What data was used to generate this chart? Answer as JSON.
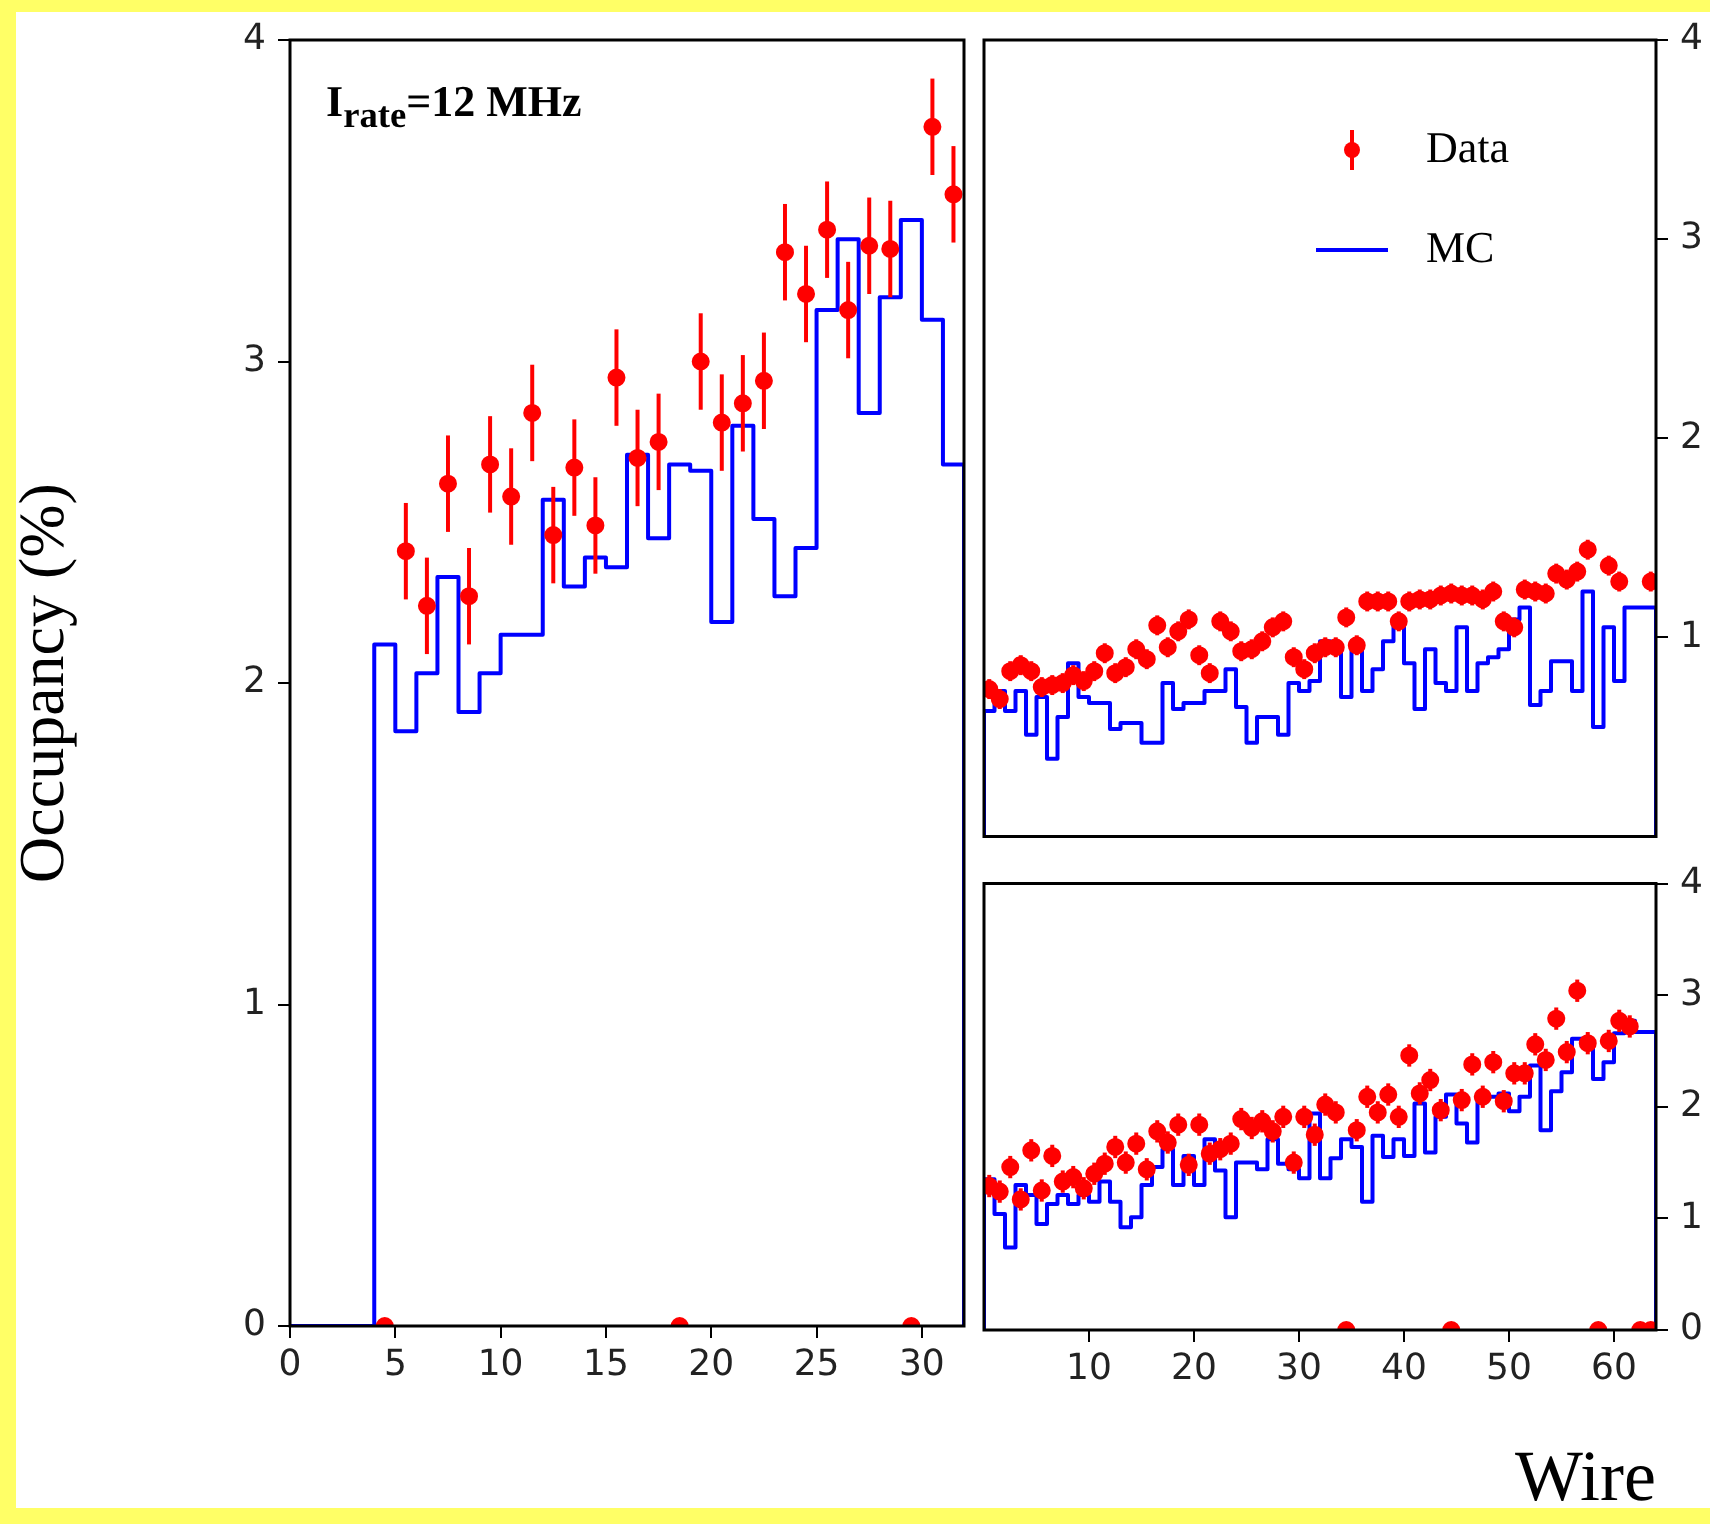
{
  "chart_data": [
    {
      "type": "scatter",
      "ylabel": "Occupancy (%)",
      "annotations": [
        "I$_{rate}$=12 MHz"
      ],
      "xlim": [
        0,
        32
      ],
      "xticks": [
        0,
        5,
        10,
        15,
        20,
        25,
        30
      ],
      "ylim": [
        0,
        4
      ],
      "yticks": [
        0,
        1,
        2,
        3,
        4
      ],
      "grid": false,
      "legend": false,
      "marker": "circle",
      "x": [
        4.5,
        5.5,
        6.5,
        7.5,
        8.5,
        9.5,
        10.5,
        11.5,
        12.5,
        13.5,
        14.5,
        15.5,
        16.5,
        17.5,
        18.5,
        19.5,
        20.5,
        21.5,
        22.5,
        23.5,
        24.5,
        25.5,
        26.5,
        27.5,
        28.5,
        29.5,
        30.5,
        31.5
      ],
      "series": [
        {
          "type": "scatter",
          "color": "#ff0000",
          "values": [
            0,
            2.41,
            2.24,
            2.62,
            2.27,
            2.68,
            2.58,
            2.84,
            2.46,
            2.67,
            2.49,
            2.95,
            2.7,
            2.75,
            0,
            3.0,
            2.81,
            2.87,
            2.94,
            3.34,
            3.21,
            3.41,
            3.16,
            3.36,
            3.35,
            0,
            3.73,
            3.52
          ],
          "errors": [
            null,
            0.15,
            0.15,
            0.15,
            0.15,
            0.15,
            0.15,
            0.15,
            0.15,
            0.15,
            0.15,
            0.15,
            0.15,
            0.15,
            null,
            0.15,
            0.15,
            0.15,
            0.15,
            0.15,
            0.15,
            0.15,
            0.15,
            0.15,
            0.15,
            null,
            0.15,
            0.15
          ]
        },
        {
          "type": "histogram",
          "color": "#0000ff",
          "bins": [
            0,
            1,
            2,
            3,
            4,
            5,
            6,
            7,
            8,
            9,
            10,
            11,
            12,
            13,
            14,
            15,
            16,
            17,
            18,
            19,
            20,
            21,
            22,
            23,
            24,
            25,
            26,
            27,
            28,
            29,
            30,
            31,
            32
          ],
          "values": [
            0,
            0,
            0,
            0,
            2.12,
            1.85,
            2.03,
            2.33,
            1.91,
            2.03,
            2.15,
            2.15,
            2.57,
            2.3,
            2.39,
            2.36,
            2.71,
            2.45,
            2.68,
            2.66,
            2.19,
            2.8,
            2.51,
            2.27,
            2.42,
            3.16,
            3.38,
            2.84,
            3.2,
            3.44,
            3.13,
            2.68
          ]
        }
      ]
    },
    {
      "type": "scatter",
      "xlim": [
        0,
        64
      ],
      "xticks": [
        10,
        20,
        30,
        40,
        50,
        60
      ],
      "ylim": [
        0,
        4
      ],
      "yticks": [
        1,
        2,
        3,
        4
      ],
      "tick_labels": "y",
      "grid": false,
      "legend": "top right",
      "marker": "circle",
      "x": [
        0.5,
        1.5,
        2.5,
        3.5,
        4.5,
        5.5,
        6.5,
        7.5,
        8.5,
        9.5,
        10.5,
        11.5,
        12.5,
        13.5,
        14.5,
        15.5,
        16.5,
        17.5,
        18.5,
        19.5,
        20.5,
        21.5,
        22.5,
        23.5,
        24.5,
        25.5,
        26.5,
        27.5,
        28.5,
        29.5,
        30.5,
        31.5,
        32.5,
        33.5,
        34.5,
        35.5,
        36.5,
        37.5,
        38.5,
        39.5,
        40.5,
        41.5,
        42.5,
        43.5,
        44.5,
        45.5,
        46.5,
        47.5,
        48.5,
        49.5,
        50.5,
        51.5,
        52.5,
        53.5,
        54.5,
        55.5,
        56.5,
        57.5,
        58.5,
        59.5,
        60.5,
        61.5,
        62.5,
        63.5
      ],
      "series": [
        {
          "name": "Data",
          "type": "scatter",
          "color": "#ff0000",
          "values": [
            0.74,
            0.69,
            0.83,
            0.86,
            0.83,
            0.75,
            0.76,
            0.77,
            0.81,
            0.78,
            0.83,
            0.92,
            0.82,
            0.85,
            0.94,
            0.89,
            1.06,
            0.95,
            1.03,
            1.09,
            0.91,
            0.82,
            1.08,
            1.03,
            0.93,
            0.94,
            0.98,
            1.05,
            1.08,
            0.9,
            0.84,
            0.92,
            0.95,
            0.95,
            1.1,
            0.96,
            1.18,
            1.18,
            1.18,
            1.08,
            1.18,
            1.19,
            1.19,
            1.21,
            1.22,
            1.21,
            1.21,
            1.19,
            1.23,
            1.08,
            1.05,
            1.24,
            1.23,
            1.22,
            1.32,
            1.29,
            1.33,
            1.44,
            null,
            1.36,
            1.28,
            null,
            null,
            1.28
          ],
          "errors": [
            0.05,
            0.05,
            0.05,
            0.05,
            0.05,
            0.05,
            0.05,
            0.05,
            0.05,
            0.05,
            0.05,
            0.05,
            0.05,
            0.05,
            0.05,
            0.05,
            0.05,
            0.05,
            0.05,
            0.05,
            0.05,
            0.05,
            0.05,
            0.05,
            0.05,
            0.05,
            0.05,
            0.05,
            0.05,
            0.05,
            0.05,
            0.05,
            0.05,
            0.05,
            0.05,
            0.05,
            0.05,
            0.05,
            0.05,
            0.05,
            0.05,
            0.05,
            0.05,
            0.05,
            0.05,
            0.05,
            0.05,
            0.05,
            0.05,
            0.05,
            0.05,
            0.05,
            0.05,
            0.05,
            0.05,
            0.05,
            0.05,
            0.05,
            null,
            0.05,
            0.05,
            null,
            null,
            0.05
          ]
        },
        {
          "name": "MC",
          "type": "histogram",
          "color": "#0000ff",
          "bins": [
            0,
            1,
            2,
            3,
            4,
            5,
            6,
            7,
            8,
            9,
            10,
            11,
            12,
            13,
            14,
            15,
            16,
            17,
            18,
            19,
            20,
            21,
            22,
            23,
            24,
            25,
            26,
            27,
            28,
            29,
            30,
            31,
            32,
            33,
            34,
            35,
            36,
            37,
            38,
            39,
            40,
            41,
            42,
            43,
            44,
            45,
            46,
            47,
            48,
            49,
            50,
            51,
            52,
            53,
            54,
            55,
            56,
            57,
            58,
            59,
            60,
            61,
            62,
            63,
            64
          ],
          "values": [
            0.63,
            0.73,
            0.63,
            0.73,
            0.51,
            0.7,
            0.39,
            0.6,
            0.87,
            0.7,
            0.67,
            0.67,
            0.54,
            0.57,
            0.57,
            0.47,
            0.47,
            0.77,
            0.64,
            0.67,
            0.67,
            0.73,
            0.73,
            0.84,
            0.65,
            0.47,
            0.6,
            0.6,
            0.51,
            0.77,
            0.73,
            0.78,
            0.98,
            0.94,
            0.7,
            0.98,
            0.73,
            0.84,
            0.98,
            1.09,
            0.87,
            0.64,
            0.94,
            0.77,
            0.73,
            1.05,
            0.73,
            0.87,
            0.9,
            0.94,
            1.09,
            1.15,
            0.66,
            0.73,
            0.88,
            0.88,
            0.73,
            1.23,
            0.55,
            1.05,
            0.78,
            1.15,
            1.15,
            1.15
          ]
        }
      ]
    },
    {
      "type": "scatter",
      "xlabel": "Wire",
      "xlim": [
        0,
        64
      ],
      "xticks": [
        10,
        20,
        30,
        40,
        50,
        60
      ],
      "ylim": [
        0,
        4
      ],
      "yticks": [
        0,
        1,
        2,
        3,
        4
      ],
      "grid": false,
      "legend": false,
      "marker": "circle",
      "x": [
        0.5,
        1.5,
        2.5,
        3.5,
        4.5,
        5.5,
        6.5,
        7.5,
        8.5,
        9.5,
        10.5,
        11.5,
        12.5,
        13.5,
        14.5,
        15.5,
        16.5,
        17.5,
        18.5,
        19.5,
        20.5,
        21.5,
        22.5,
        23.5,
        24.5,
        25.5,
        26.5,
        27.5,
        28.5,
        29.5,
        30.5,
        31.5,
        32.5,
        33.5,
        34.5,
        35.5,
        36.5,
        37.5,
        38.5,
        39.5,
        40.5,
        41.5,
        42.5,
        43.5,
        44.5,
        45.5,
        46.5,
        47.5,
        48.5,
        49.5,
        50.5,
        51.5,
        52.5,
        53.5,
        54.5,
        55.5,
        56.5,
        57.5,
        58.5,
        59.5,
        60.5,
        61.5,
        62.5,
        63.5
      ],
      "series": [
        {
          "type": "scatter",
          "color": "#ff0000",
          "values": [
            1.29,
            1.24,
            1.46,
            1.17,
            1.61,
            1.25,
            1.56,
            1.33,
            1.37,
            1.27,
            1.4,
            1.49,
            1.64,
            1.5,
            1.67,
            1.44,
            1.78,
            1.68,
            1.84,
            1.48,
            1.84,
            1.58,
            1.62,
            1.67,
            1.89,
            1.81,
            1.87,
            1.78,
            1.91,
            1.5,
            1.91,
            1.75,
            2.02,
            1.95,
            0,
            1.79,
            2.09,
            1.95,
            2.11,
            1.91,
            2.46,
            2.12,
            2.24,
            1.97,
            0,
            2.06,
            2.38,
            2.09,
            2.4,
            2.05,
            2.3,
            2.3,
            2.56,
            2.42,
            2.79,
            2.49,
            3.04,
            2.57,
            0,
            2.59,
            2.77,
            2.72,
            0,
            0
          ],
          "errors": [
            0.1,
            0.1,
            0.1,
            0.1,
            0.1,
            0.1,
            0.1,
            0.1,
            0.1,
            0.1,
            0.1,
            0.1,
            0.1,
            0.1,
            0.1,
            0.1,
            0.1,
            0.1,
            0.1,
            0.1,
            0.1,
            0.1,
            0.1,
            0.1,
            0.1,
            0.1,
            0.1,
            0.1,
            0.1,
            0.1,
            0.1,
            0.1,
            0.1,
            0.1,
            null,
            0.1,
            0.1,
            0.1,
            0.1,
            0.1,
            0.1,
            0.1,
            0.1,
            0.1,
            null,
            0.1,
            0.1,
            0.1,
            0.1,
            0.1,
            0.1,
            0.1,
            0.1,
            0.1,
            0.1,
            0.1,
            0.1,
            0.1,
            null,
            0.1,
            0.1,
            0.1,
            null,
            null
          ]
        },
        {
          "type": "histogram",
          "color": "#0000ff",
          "bins": [
            0,
            1,
            2,
            3,
            4,
            5,
            6,
            7,
            8,
            9,
            10,
            11,
            12,
            13,
            14,
            15,
            16,
            17,
            18,
            19,
            20,
            21,
            22,
            23,
            24,
            25,
            26,
            27,
            28,
            29,
            30,
            31,
            32,
            33,
            34,
            35,
            36,
            37,
            38,
            39,
            40,
            41,
            42,
            43,
            44,
            45,
            46,
            47,
            48,
            49,
            50,
            51,
            52,
            53,
            54,
            55,
            56,
            57,
            58,
            59,
            60,
            61,
            62,
            63,
            64
          ],
          "values": [
            1.35,
            1.04,
            0.74,
            1.3,
            1.21,
            0.95,
            1.13,
            1.21,
            1.13,
            1.21,
            1.15,
            1.33,
            1.15,
            0.92,
            1.01,
            1.3,
            1.46,
            1.62,
            1.3,
            1.56,
            1.3,
            1.71,
            1.43,
            1.01,
            1.5,
            1.5,
            1.44,
            1.71,
            1.49,
            1.44,
            1.36,
            1.94,
            1.36,
            1.54,
            1.71,
            1.64,
            1.15,
            1.74,
            1.55,
            1.71,
            1.56,
            2.03,
            1.59,
            1.91,
            2.11,
            1.85,
            1.68,
            2.09,
            2.09,
            2.12,
            1.96,
            2.09,
            2.37,
            1.79,
            2.14,
            2.31,
            2.61,
            2.59,
            2.25,
            2.4,
            2.66,
            2.77,
            2.67,
            2.67
          ]
        }
      ]
    }
  ]
}
